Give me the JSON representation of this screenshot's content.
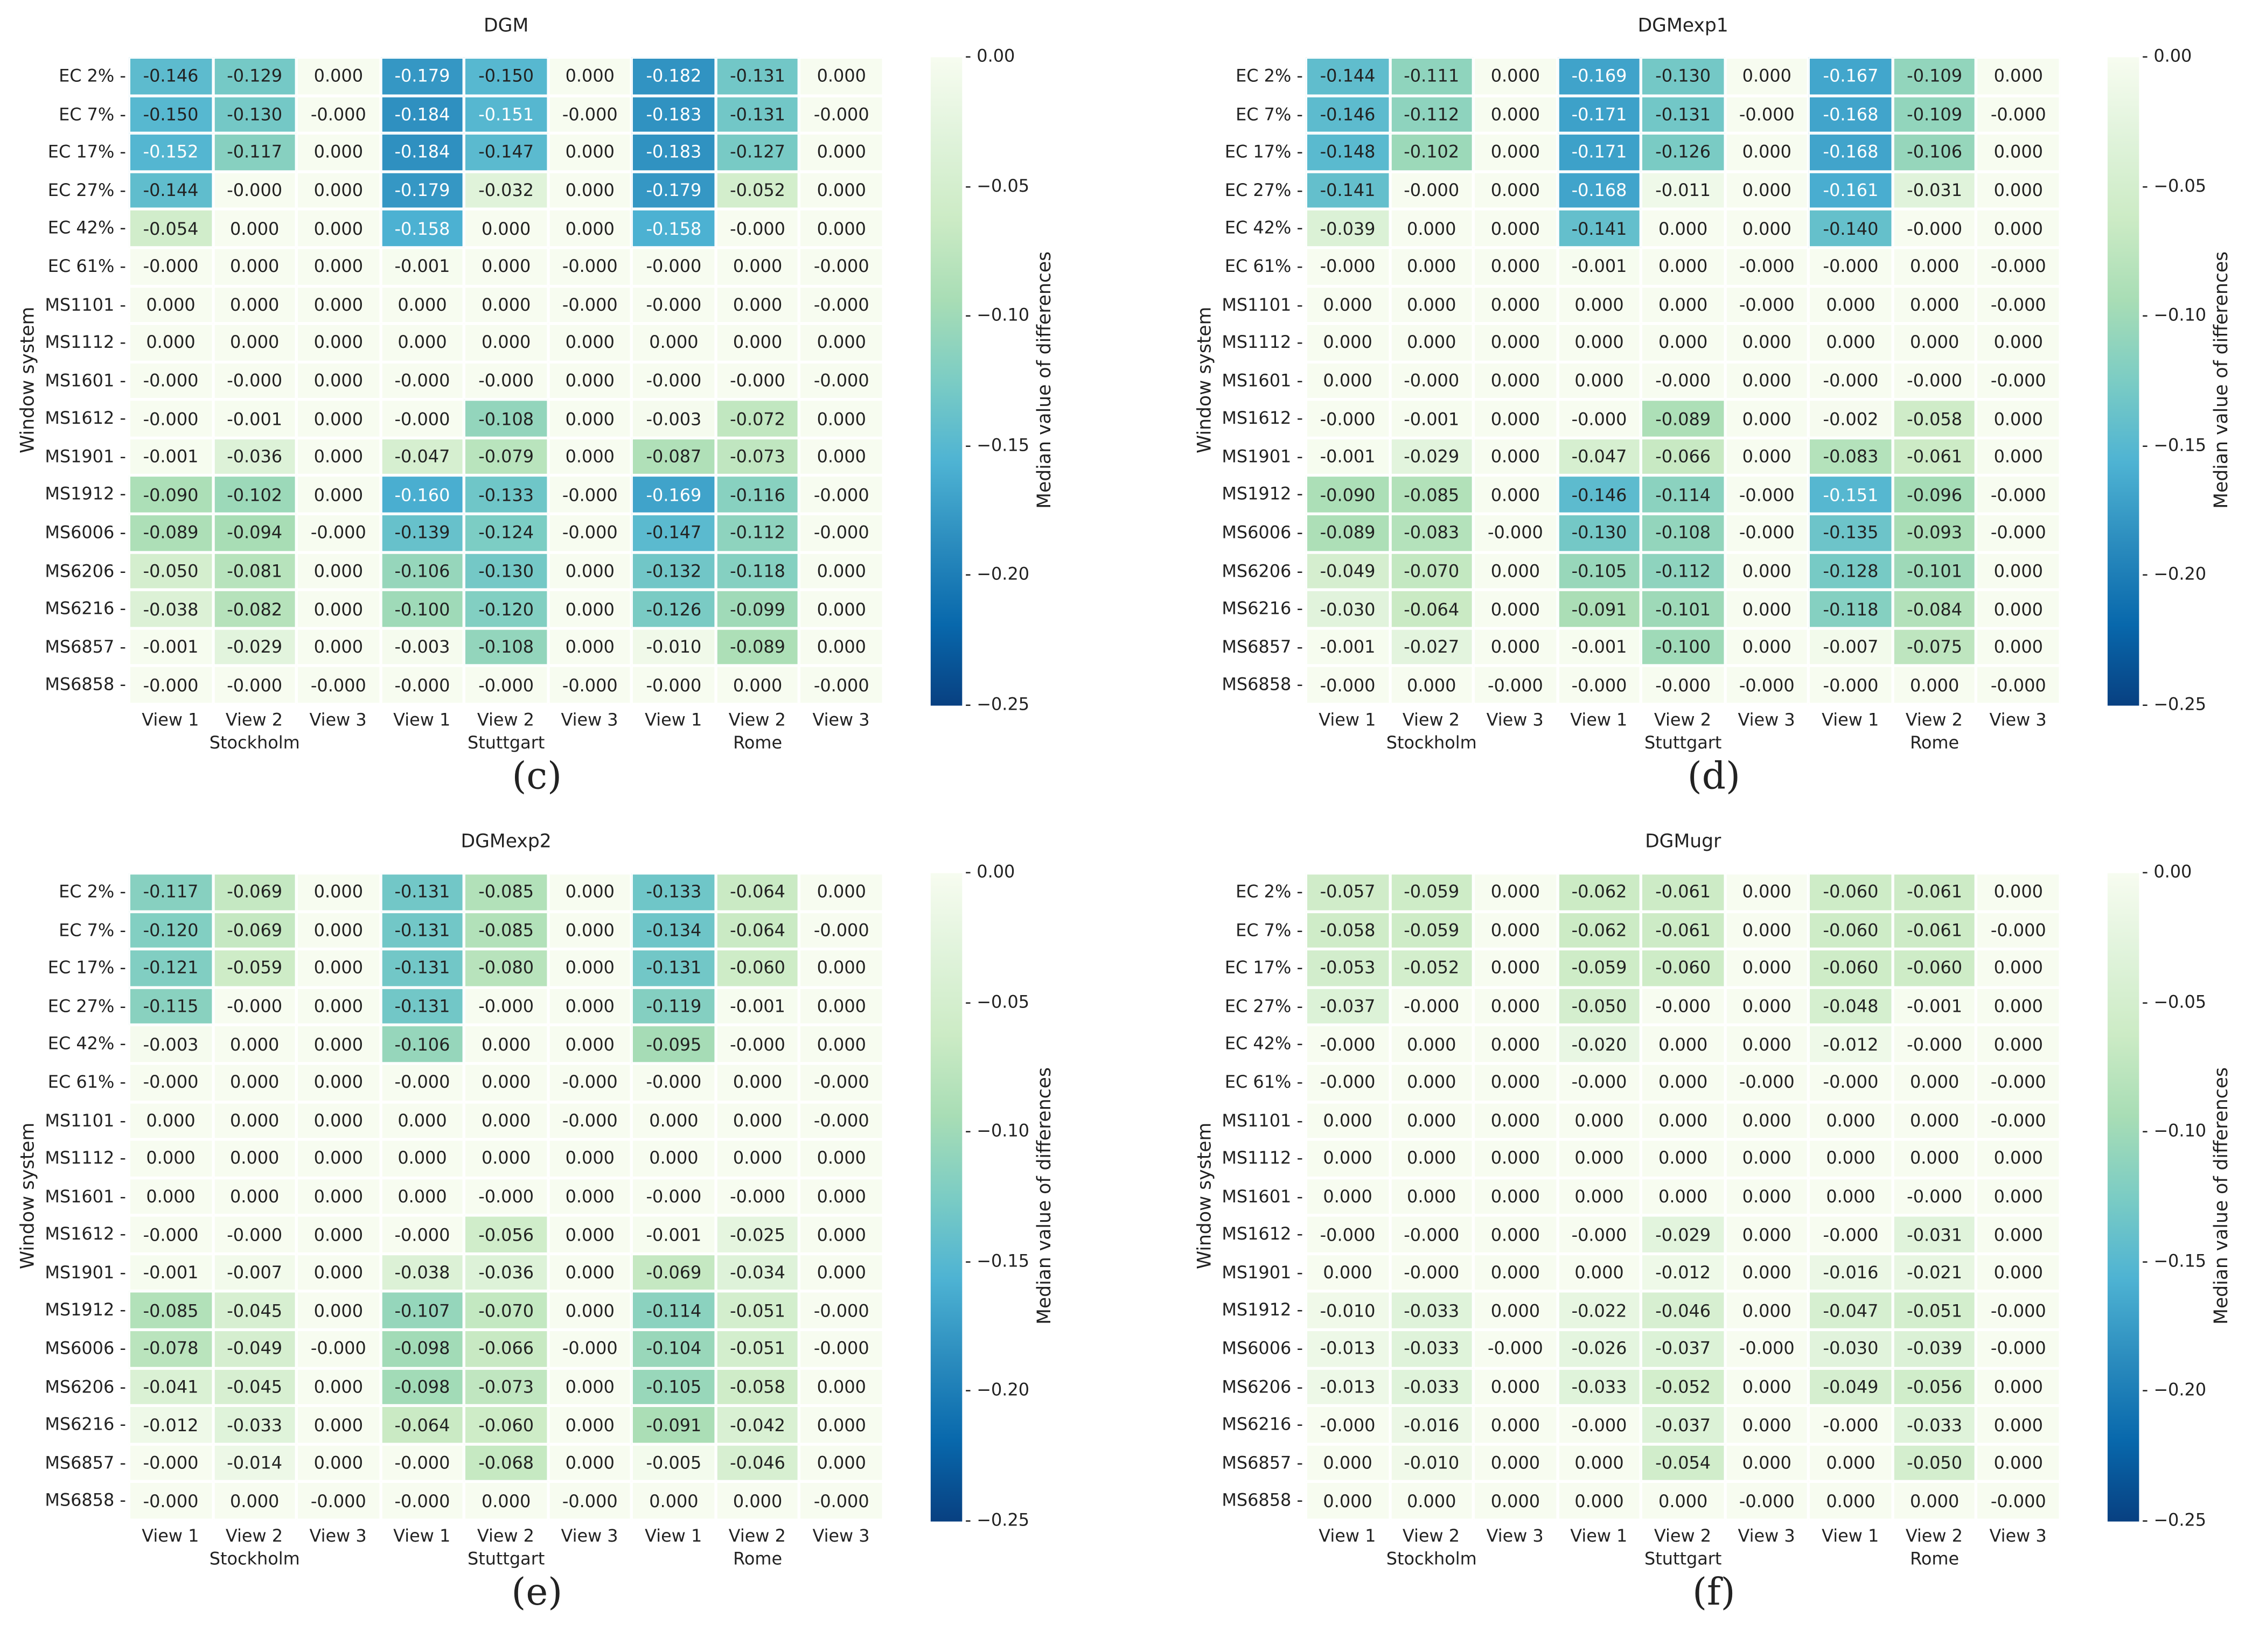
{
  "rows": [
    "EC 2%",
    "EC 7%",
    "EC 17%",
    "EC 27%",
    "EC 42%",
    "EC 61%",
    "MS1101",
    "MS1112",
    "MS1601",
    "MS1612",
    "MS1901",
    "MS1912",
    "MS6006",
    "MS6206",
    "MS6216",
    "MS6857",
    "MS6858"
  ],
  "views": [
    "View 1",
    "View 2",
    "View 3",
    "View 1",
    "View 2",
    "View 3",
    "View 1",
    "View 2",
    "View 3"
  ],
  "cities": [
    "Stockholm",
    "Stuttgart",
    "Rome"
  ],
  "ylabel": "Window system",
  "colorbar": {
    "label": "Median value of differences",
    "ticks": [
      "0.00",
      "−0.05",
      "−0.10",
      "−0.15",
      "−0.20",
      "−0.25"
    ],
    "range": [
      -0.25,
      0
    ],
    "colors": [
      "#f7fcf0",
      "#e0f3db",
      "#ccebc5",
      "#a8ddb5",
      "#7bccc4",
      "#4eb3d3",
      "#2b8cbe",
      "#0868ac",
      "#084081"
    ]
  },
  "chart_data": [
    {
      "type": "heatmap",
      "title": "DGM",
      "letter": "(c)",
      "values": [
        [
          "-0.146",
          "-0.129",
          "0.000",
          "-0.179",
          "-0.150",
          "0.000",
          "-0.182",
          "-0.131",
          "0.000"
        ],
        [
          "-0.150",
          "-0.130",
          "-0.000",
          "-0.184",
          "-0.151",
          "-0.000",
          "-0.183",
          "-0.131",
          "-0.000"
        ],
        [
          "-0.152",
          "-0.117",
          "0.000",
          "-0.184",
          "-0.147",
          "0.000",
          "-0.183",
          "-0.127",
          "0.000"
        ],
        [
          "-0.144",
          "-0.000",
          "0.000",
          "-0.179",
          "-0.032",
          "0.000",
          "-0.179",
          "-0.052",
          "0.000"
        ],
        [
          "-0.054",
          "0.000",
          "0.000",
          "-0.158",
          "0.000",
          "0.000",
          "-0.158",
          "-0.000",
          "0.000"
        ],
        [
          "-0.000",
          "0.000",
          "0.000",
          "-0.001",
          "0.000",
          "-0.000",
          "-0.000",
          "0.000",
          "-0.000"
        ],
        [
          "0.000",
          "0.000",
          "0.000",
          "0.000",
          "0.000",
          "-0.000",
          "-0.000",
          "0.000",
          "-0.000"
        ],
        [
          "0.000",
          "0.000",
          "0.000",
          "0.000",
          "0.000",
          "0.000",
          "0.000",
          "0.000",
          "0.000"
        ],
        [
          "-0.000",
          "-0.000",
          "0.000",
          "-0.000",
          "-0.000",
          "0.000",
          "-0.000",
          "-0.000",
          "-0.000"
        ],
        [
          "-0.000",
          "-0.001",
          "0.000",
          "-0.000",
          "-0.108",
          "0.000",
          "-0.003",
          "-0.072",
          "0.000"
        ],
        [
          "-0.001",
          "-0.036",
          "0.000",
          "-0.047",
          "-0.079",
          "0.000",
          "-0.087",
          "-0.073",
          "0.000"
        ],
        [
          "-0.090",
          "-0.102",
          "0.000",
          "-0.160",
          "-0.133",
          "-0.000",
          "-0.169",
          "-0.116",
          "-0.000"
        ],
        [
          "-0.089",
          "-0.094",
          "-0.000",
          "-0.139",
          "-0.124",
          "-0.000",
          "-0.147",
          "-0.112",
          "-0.000"
        ],
        [
          "-0.050",
          "-0.081",
          "0.000",
          "-0.106",
          "-0.130",
          "0.000",
          "-0.132",
          "-0.118",
          "0.000"
        ],
        [
          "-0.038",
          "-0.082",
          "0.000",
          "-0.100",
          "-0.120",
          "0.000",
          "-0.126",
          "-0.099",
          "0.000"
        ],
        [
          "-0.001",
          "-0.029",
          "0.000",
          "-0.003",
          "-0.108",
          "0.000",
          "-0.010",
          "-0.089",
          "0.000"
        ],
        [
          "-0.000",
          "-0.000",
          "-0.000",
          "-0.000",
          "-0.000",
          "-0.000",
          "-0.000",
          "0.000",
          "-0.000"
        ]
      ]
    },
    {
      "type": "heatmap",
      "title": "DGMexp1",
      "letter": "(d)",
      "values": [
        [
          "-0.144",
          "-0.111",
          "0.000",
          "-0.169",
          "-0.130",
          "0.000",
          "-0.167",
          "-0.109",
          "0.000"
        ],
        [
          "-0.146",
          "-0.112",
          "0.000",
          "-0.171",
          "-0.131",
          "-0.000",
          "-0.168",
          "-0.109",
          "-0.000"
        ],
        [
          "-0.148",
          "-0.102",
          "0.000",
          "-0.171",
          "-0.126",
          "0.000",
          "-0.168",
          "-0.106",
          "0.000"
        ],
        [
          "-0.141",
          "-0.000",
          "0.000",
          "-0.168",
          "-0.011",
          "0.000",
          "-0.161",
          "-0.031",
          "0.000"
        ],
        [
          "-0.039",
          "0.000",
          "0.000",
          "-0.141",
          "0.000",
          "0.000",
          "-0.140",
          "-0.000",
          "0.000"
        ],
        [
          "-0.000",
          "0.000",
          "0.000",
          "-0.001",
          "0.000",
          "-0.000",
          "-0.000",
          "0.000",
          "-0.000"
        ],
        [
          "0.000",
          "0.000",
          "0.000",
          "0.000",
          "0.000",
          "-0.000",
          "0.000",
          "0.000",
          "-0.000"
        ],
        [
          "0.000",
          "0.000",
          "0.000",
          "0.000",
          "0.000",
          "0.000",
          "0.000",
          "0.000",
          "0.000"
        ],
        [
          "0.000",
          "-0.000",
          "0.000",
          "0.000",
          "-0.000",
          "0.000",
          "-0.000",
          "-0.000",
          "-0.000"
        ],
        [
          "-0.000",
          "-0.001",
          "0.000",
          "-0.000",
          "-0.089",
          "0.000",
          "-0.002",
          "-0.058",
          "0.000"
        ],
        [
          "-0.001",
          "-0.029",
          "0.000",
          "-0.047",
          "-0.066",
          "0.000",
          "-0.083",
          "-0.061",
          "0.000"
        ],
        [
          "-0.090",
          "-0.085",
          "0.000",
          "-0.146",
          "-0.114",
          "-0.000",
          "-0.151",
          "-0.096",
          "-0.000"
        ],
        [
          "-0.089",
          "-0.083",
          "-0.000",
          "-0.130",
          "-0.108",
          "-0.000",
          "-0.135",
          "-0.093",
          "-0.000"
        ],
        [
          "-0.049",
          "-0.070",
          "0.000",
          "-0.105",
          "-0.112",
          "0.000",
          "-0.128",
          "-0.101",
          "0.000"
        ],
        [
          "-0.030",
          "-0.064",
          "0.000",
          "-0.091",
          "-0.101",
          "0.000",
          "-0.118",
          "-0.084",
          "0.000"
        ],
        [
          "-0.001",
          "-0.027",
          "0.000",
          "-0.001",
          "-0.100",
          "0.000",
          "-0.007",
          "-0.075",
          "0.000"
        ],
        [
          "-0.000",
          "0.000",
          "-0.000",
          "-0.000",
          "-0.000",
          "-0.000",
          "-0.000",
          "0.000",
          "-0.000"
        ]
      ]
    },
    {
      "type": "heatmap",
      "title": "DGMexp2",
      "letter": "(e)",
      "values": [
        [
          "-0.117",
          "-0.069",
          "0.000",
          "-0.131",
          "-0.085",
          "0.000",
          "-0.133",
          "-0.064",
          "0.000"
        ],
        [
          "-0.120",
          "-0.069",
          "0.000",
          "-0.131",
          "-0.085",
          "0.000",
          "-0.134",
          "-0.064",
          "-0.000"
        ],
        [
          "-0.121",
          "-0.059",
          "0.000",
          "-0.131",
          "-0.080",
          "0.000",
          "-0.131",
          "-0.060",
          "0.000"
        ],
        [
          "-0.115",
          "-0.000",
          "0.000",
          "-0.131",
          "-0.000",
          "0.000",
          "-0.119",
          "-0.001",
          "0.000"
        ],
        [
          "-0.003",
          "0.000",
          "0.000",
          "-0.106",
          "0.000",
          "0.000",
          "-0.095",
          "-0.000",
          "0.000"
        ],
        [
          "-0.000",
          "0.000",
          "0.000",
          "-0.000",
          "0.000",
          "-0.000",
          "-0.000",
          "0.000",
          "-0.000"
        ],
        [
          "0.000",
          "0.000",
          "0.000",
          "0.000",
          "0.000",
          "-0.000",
          "0.000",
          "0.000",
          "-0.000"
        ],
        [
          "0.000",
          "0.000",
          "0.000",
          "0.000",
          "0.000",
          "0.000",
          "0.000",
          "0.000",
          "0.000"
        ],
        [
          "0.000",
          "0.000",
          "0.000",
          "0.000",
          "-0.000",
          "0.000",
          "-0.000",
          "-0.000",
          "0.000"
        ],
        [
          "-0.000",
          "-0.000",
          "0.000",
          "-0.000",
          "-0.056",
          "0.000",
          "-0.001",
          "-0.025",
          "0.000"
        ],
        [
          "-0.001",
          "-0.007",
          "0.000",
          "-0.038",
          "-0.036",
          "0.000",
          "-0.069",
          "-0.034",
          "0.000"
        ],
        [
          "-0.085",
          "-0.045",
          "0.000",
          "-0.107",
          "-0.070",
          "0.000",
          "-0.114",
          "-0.051",
          "-0.000"
        ],
        [
          "-0.078",
          "-0.049",
          "-0.000",
          "-0.098",
          "-0.066",
          "-0.000",
          "-0.104",
          "-0.051",
          "-0.000"
        ],
        [
          "-0.041",
          "-0.045",
          "0.000",
          "-0.098",
          "-0.073",
          "0.000",
          "-0.105",
          "-0.058",
          "0.000"
        ],
        [
          "-0.012",
          "-0.033",
          "0.000",
          "-0.064",
          "-0.060",
          "0.000",
          "-0.091",
          "-0.042",
          "0.000"
        ],
        [
          "-0.000",
          "-0.014",
          "0.000",
          "-0.000",
          "-0.068",
          "0.000",
          "-0.005",
          "-0.046",
          "0.000"
        ],
        [
          "-0.000",
          "0.000",
          "-0.000",
          "-0.000",
          "0.000",
          "-0.000",
          "0.000",
          "0.000",
          "-0.000"
        ]
      ]
    },
    {
      "type": "heatmap",
      "title": "DGMugr",
      "letter": "(f)",
      "values": [
        [
          "-0.057",
          "-0.059",
          "0.000",
          "-0.062",
          "-0.061",
          "0.000",
          "-0.060",
          "-0.061",
          "0.000"
        ],
        [
          "-0.058",
          "-0.059",
          "0.000",
          "-0.062",
          "-0.061",
          "0.000",
          "-0.060",
          "-0.061",
          "-0.000"
        ],
        [
          "-0.053",
          "-0.052",
          "0.000",
          "-0.059",
          "-0.060",
          "0.000",
          "-0.060",
          "-0.060",
          "0.000"
        ],
        [
          "-0.037",
          "-0.000",
          "0.000",
          "-0.050",
          "-0.000",
          "0.000",
          "-0.048",
          "-0.001",
          "0.000"
        ],
        [
          "-0.000",
          "0.000",
          "0.000",
          "-0.020",
          "0.000",
          "0.000",
          "-0.012",
          "-0.000",
          "0.000"
        ],
        [
          "-0.000",
          "0.000",
          "0.000",
          "-0.000",
          "0.000",
          "-0.000",
          "-0.000",
          "0.000",
          "-0.000"
        ],
        [
          "0.000",
          "0.000",
          "0.000",
          "0.000",
          "0.000",
          "0.000",
          "0.000",
          "0.000",
          "-0.000"
        ],
        [
          "0.000",
          "0.000",
          "0.000",
          "0.000",
          "0.000",
          "0.000",
          "0.000",
          "0.000",
          "0.000"
        ],
        [
          "0.000",
          "0.000",
          "0.000",
          "0.000",
          "0.000",
          "0.000",
          "0.000",
          "-0.000",
          "0.000"
        ],
        [
          "-0.000",
          "-0.000",
          "0.000",
          "-0.000",
          "-0.029",
          "0.000",
          "-0.000",
          "-0.031",
          "0.000"
        ],
        [
          "0.000",
          "-0.000",
          "0.000",
          "0.000",
          "-0.012",
          "0.000",
          "-0.016",
          "-0.021",
          "0.000"
        ],
        [
          "-0.010",
          "-0.033",
          "0.000",
          "-0.022",
          "-0.046",
          "0.000",
          "-0.047",
          "-0.051",
          "-0.000"
        ],
        [
          "-0.013",
          "-0.033",
          "-0.000",
          "-0.026",
          "-0.037",
          "-0.000",
          "-0.030",
          "-0.039",
          "-0.000"
        ],
        [
          "-0.013",
          "-0.033",
          "0.000",
          "-0.033",
          "-0.052",
          "0.000",
          "-0.049",
          "-0.056",
          "0.000"
        ],
        [
          "-0.000",
          "-0.016",
          "0.000",
          "-0.000",
          "-0.037",
          "0.000",
          "-0.000",
          "-0.033",
          "0.000"
        ],
        [
          "0.000",
          "-0.010",
          "0.000",
          "0.000",
          "-0.054",
          "0.000",
          "0.000",
          "-0.050",
          "0.000"
        ],
        [
          "0.000",
          "0.000",
          "0.000",
          "0.000",
          "0.000",
          "-0.000",
          "0.000",
          "0.000",
          "-0.000"
        ]
      ]
    }
  ]
}
